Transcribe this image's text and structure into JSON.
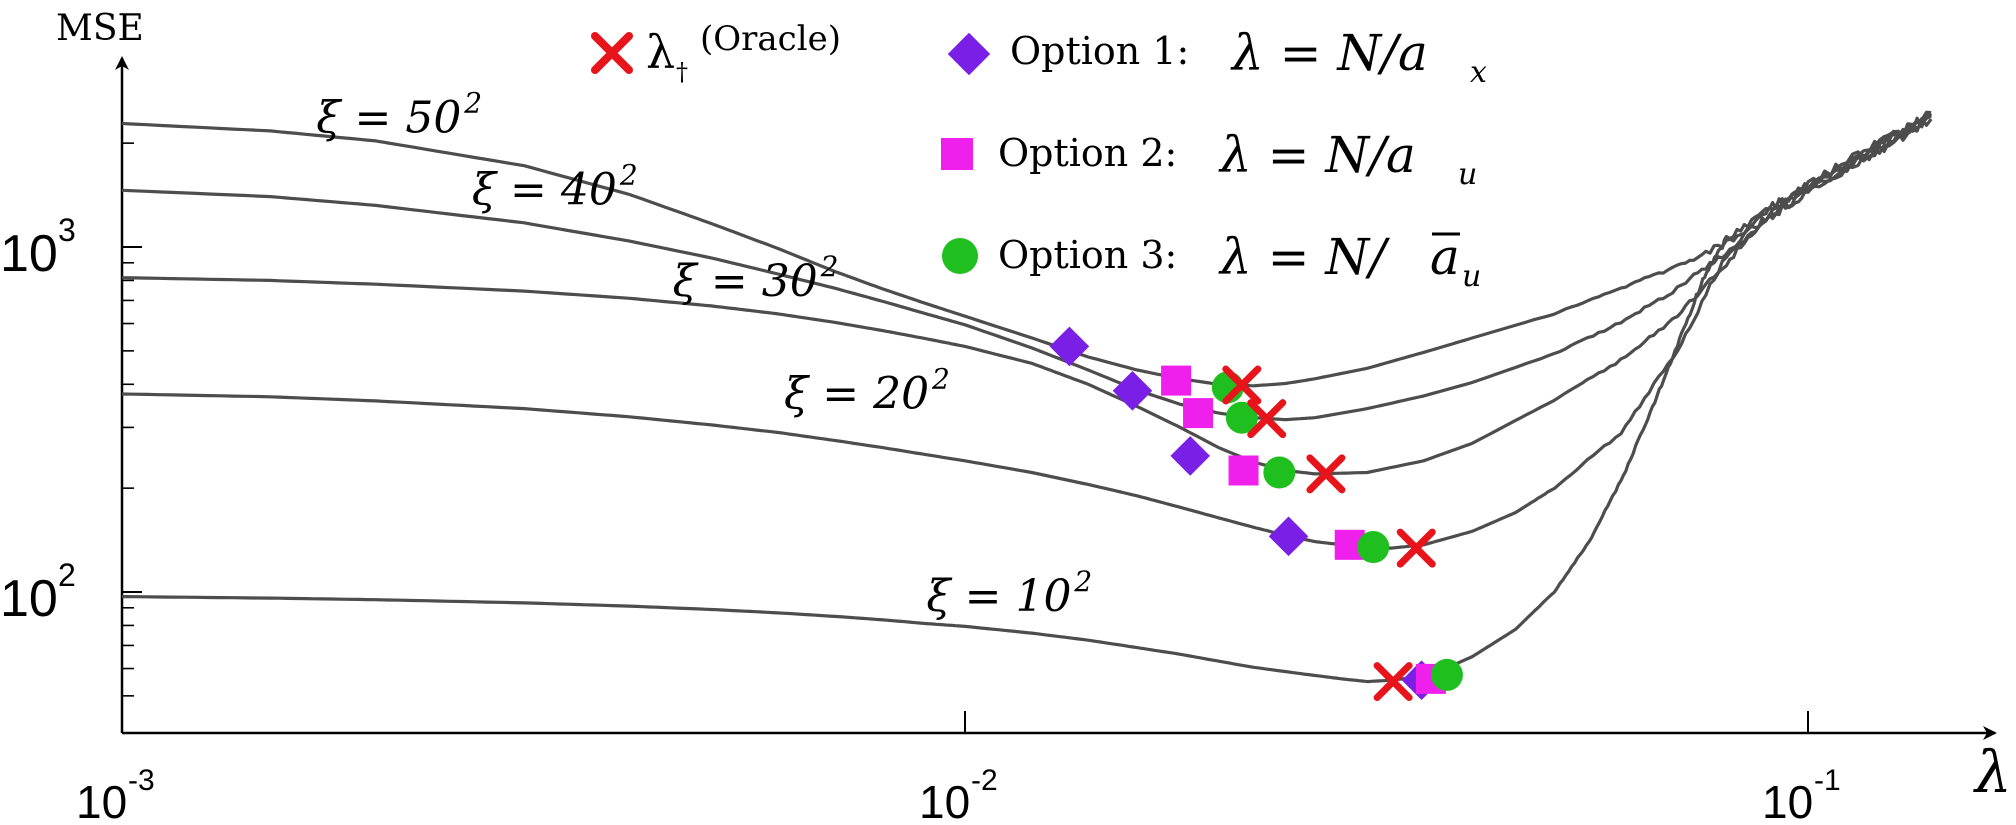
{
  "chart_data": {
    "type": "line",
    "title": "",
    "xlabel": "λ",
    "ylabel": "MSE",
    "xscale": "log",
    "yscale": "log",
    "xlim": [
      0.001,
      0.14
    ],
    "ylim": [
      45,
      2600
    ],
    "x_ticks": [
      {
        "value": 0.001,
        "base": "10",
        "exp": "-3"
      },
      {
        "value": 0.01,
        "base": "10",
        "exp": "-2"
      },
      {
        "value": 0.1,
        "base": "10",
        "exp": "-1"
      }
    ],
    "y_ticks": [
      {
        "value": 100,
        "base": "10",
        "exp": "2"
      },
      {
        "value": 1000,
        "base": "10",
        "exp": "3"
      }
    ],
    "grid": false,
    "legend_position": "top",
    "legend": {
      "oracle": {
        "symbol": "λ",
        "subscript": "†",
        "text": "(Oracle)",
        "color": "#e8141b"
      },
      "option1": {
        "text": "Option 1:",
        "formula_left": "λ = N/a",
        "formula_sub": "x",
        "color": "#7a1fe6"
      },
      "option2": {
        "text": "Option 2:",
        "formula_left": "λ = N/a",
        "formula_sub": "u",
        "color": "#f020ec"
      },
      "option3": {
        "text": "Option 3:",
        "formula_left": "λ = N/",
        "formula_bar": "a",
        "formula_sub": "u",
        "color": "#1fbf1f"
      }
    },
    "series": [
      {
        "label": "ξ = 50",
        "label_exp": "2",
        "label_at": [
          0.0017,
          2150
        ],
        "points": [
          [
            0.001,
            2280
          ],
          [
            0.0015,
            2170
          ],
          [
            0.002,
            2030
          ],
          [
            0.003,
            1720
          ],
          [
            0.004,
            1420
          ],
          [
            0.005,
            1170
          ],
          [
            0.006,
            990
          ],
          [
            0.007,
            850
          ],
          [
            0.008,
            755
          ],
          [
            0.009,
            685
          ],
          [
            0.01,
            630
          ],
          [
            0.012,
            545
          ],
          [
            0.014,
            480
          ],
          [
            0.016,
            440
          ],
          [
            0.018,
            415
          ],
          [
            0.02,
            400
          ],
          [
            0.022,
            396
          ],
          [
            0.024,
            402
          ],
          [
            0.026,
            415
          ],
          [
            0.03,
            445
          ],
          [
            0.035,
            495
          ],
          [
            0.04,
            545
          ],
          [
            0.05,
            640
          ],
          [
            0.06,
            760
          ],
          [
            0.07,
            880
          ],
          [
            0.08,
            1030
          ],
          [
            0.09,
            1220
          ],
          [
            0.1,
            1450
          ],
          [
            0.12,
            1900
          ],
          [
            0.14,
            2450
          ]
        ],
        "option1": [
          0.0133,
          515
        ],
        "option2": [
          0.0178,
          410
        ],
        "option3": [
          0.0205,
          392
        ],
        "oracle": [
          0.0213,
          398
        ]
      },
      {
        "label": "ξ = 40",
        "label_exp": "2",
        "label_at": [
          0.0026,
          1330
        ],
        "points": [
          [
            0.001,
            1460
          ],
          [
            0.0015,
            1400
          ],
          [
            0.002,
            1320
          ],
          [
            0.003,
            1175
          ],
          [
            0.004,
            1040
          ],
          [
            0.005,
            930
          ],
          [
            0.006,
            835
          ],
          [
            0.007,
            760
          ],
          [
            0.008,
            695
          ],
          [
            0.009,
            640
          ],
          [
            0.01,
            595
          ],
          [
            0.012,
            510
          ],
          [
            0.014,
            440
          ],
          [
            0.016,
            385
          ],
          [
            0.018,
            350
          ],
          [
            0.02,
            330
          ],
          [
            0.022,
            320
          ],
          [
            0.024,
            316
          ],
          [
            0.026,
            320
          ],
          [
            0.03,
            340
          ],
          [
            0.035,
            370
          ],
          [
            0.04,
            405
          ],
          [
            0.05,
            490
          ],
          [
            0.06,
            605
          ],
          [
            0.07,
            760
          ],
          [
            0.08,
            960
          ],
          [
            0.09,
            1210
          ],
          [
            0.1,
            1480
          ],
          [
            0.12,
            1900
          ],
          [
            0.14,
            2350
          ]
        ],
        "option1": [
          0.0158,
          383
        ],
        "option2": [
          0.0189,
          330
        ],
        "option3": [
          0.0213,
          320
        ],
        "oracle": [
          0.0228,
          318
        ]
      },
      {
        "label": "ξ = 30",
        "label_exp": "2",
        "label_at": [
          0.0045,
          720
        ],
        "points": [
          [
            0.001,
            815
          ],
          [
            0.0015,
            800
          ],
          [
            0.002,
            780
          ],
          [
            0.003,
            745
          ],
          [
            0.004,
            710
          ],
          [
            0.005,
            675
          ],
          [
            0.006,
            640
          ],
          [
            0.007,
            605
          ],
          [
            0.008,
            572
          ],
          [
            0.009,
            542
          ],
          [
            0.01,
            515
          ],
          [
            0.012,
            460
          ],
          [
            0.014,
            400
          ],
          [
            0.016,
            345
          ],
          [
            0.018,
            300
          ],
          [
            0.02,
            262
          ],
          [
            0.022,
            238
          ],
          [
            0.024,
            225
          ],
          [
            0.026,
            220
          ],
          [
            0.03,
            222
          ],
          [
            0.035,
            240
          ],
          [
            0.04,
            270
          ],
          [
            0.05,
            360
          ],
          [
            0.06,
            470
          ],
          [
            0.07,
            630
          ],
          [
            0.08,
            900
          ],
          [
            0.09,
            1250
          ],
          [
            0.1,
            1520
          ],
          [
            0.12,
            1950
          ],
          [
            0.14,
            2400
          ]
        ],
        "option1": [
          0.0185,
          248
        ],
        "option2": [
          0.0214,
          225
        ],
        "option3": [
          0.0236,
          222
        ],
        "oracle": [
          0.0268,
          220
        ]
      },
      {
        "label": "ξ = 20",
        "label_exp": "2",
        "label_at": [
          0.0061,
          340
        ],
        "points": [
          [
            0.001,
            375
          ],
          [
            0.0015,
            368
          ],
          [
            0.002,
            358
          ],
          [
            0.003,
            340
          ],
          [
            0.004,
            322
          ],
          [
            0.005,
            305
          ],
          [
            0.006,
            290
          ],
          [
            0.007,
            275
          ],
          [
            0.008,
            262
          ],
          [
            0.009,
            250
          ],
          [
            0.01,
            240
          ],
          [
            0.012,
            222
          ],
          [
            0.014,
            205
          ],
          [
            0.016,
            190
          ],
          [
            0.018,
            176
          ],
          [
            0.02,
            164
          ],
          [
            0.022,
            154
          ],
          [
            0.024,
            146
          ],
          [
            0.026,
            140
          ],
          [
            0.028,
            137
          ],
          [
            0.03,
            135
          ],
          [
            0.032,
            134
          ],
          [
            0.035,
            137
          ],
          [
            0.04,
            150
          ],
          [
            0.045,
            170
          ],
          [
            0.05,
            200
          ],
          [
            0.06,
            290
          ],
          [
            0.07,
            500
          ],
          [
            0.08,
            950
          ],
          [
            0.09,
            1280
          ],
          [
            0.1,
            1500
          ],
          [
            0.12,
            1950
          ],
          [
            0.14,
            2400
          ]
        ],
        "option1": [
          0.0242,
          145
        ],
        "option2": [
          0.0286,
          137
        ],
        "option3": [
          0.0305,
          135
        ],
        "oracle": [
          0.0343,
          134
        ]
      },
      {
        "label": "ξ = 10",
        "label_exp": "2",
        "label_at": [
          0.009,
          88
        ],
        "points": [
          [
            0.001,
            97
          ],
          [
            0.0015,
            96
          ],
          [
            0.002,
            95
          ],
          [
            0.003,
            93
          ],
          [
            0.004,
            91
          ],
          [
            0.005,
            89
          ],
          [
            0.006,
            87
          ],
          [
            0.007,
            85
          ],
          [
            0.008,
            83
          ],
          [
            0.009,
            81
          ],
          [
            0.01,
            79.5
          ],
          [
            0.012,
            76
          ],
          [
            0.014,
            72.5
          ],
          [
            0.016,
            69
          ],
          [
            0.018,
            66
          ],
          [
            0.02,
            63
          ],
          [
            0.022,
            60.5
          ],
          [
            0.025,
            58
          ],
          [
            0.028,
            56
          ],
          [
            0.03,
            55
          ],
          [
            0.032,
            55.5
          ],
          [
            0.034,
            56.5
          ],
          [
            0.036,
            58
          ],
          [
            0.04,
            65
          ],
          [
            0.045,
            78
          ],
          [
            0.05,
            100
          ],
          [
            0.055,
            140
          ],
          [
            0.06,
            210
          ],
          [
            0.065,
            330
          ],
          [
            0.07,
            520
          ],
          [
            0.075,
            800
          ],
          [
            0.08,
            1050
          ],
          [
            0.09,
            1300
          ],
          [
            0.1,
            1500
          ],
          [
            0.12,
            1950
          ],
          [
            0.14,
            2400
          ]
        ],
        "option1": [
          0.0348,
          55.5
        ],
        "option2": [
          0.0357,
          56
        ],
        "option3": [
          0.0373,
          57.5
        ],
        "oracle": [
          0.0322,
          55
        ]
      }
    ]
  }
}
